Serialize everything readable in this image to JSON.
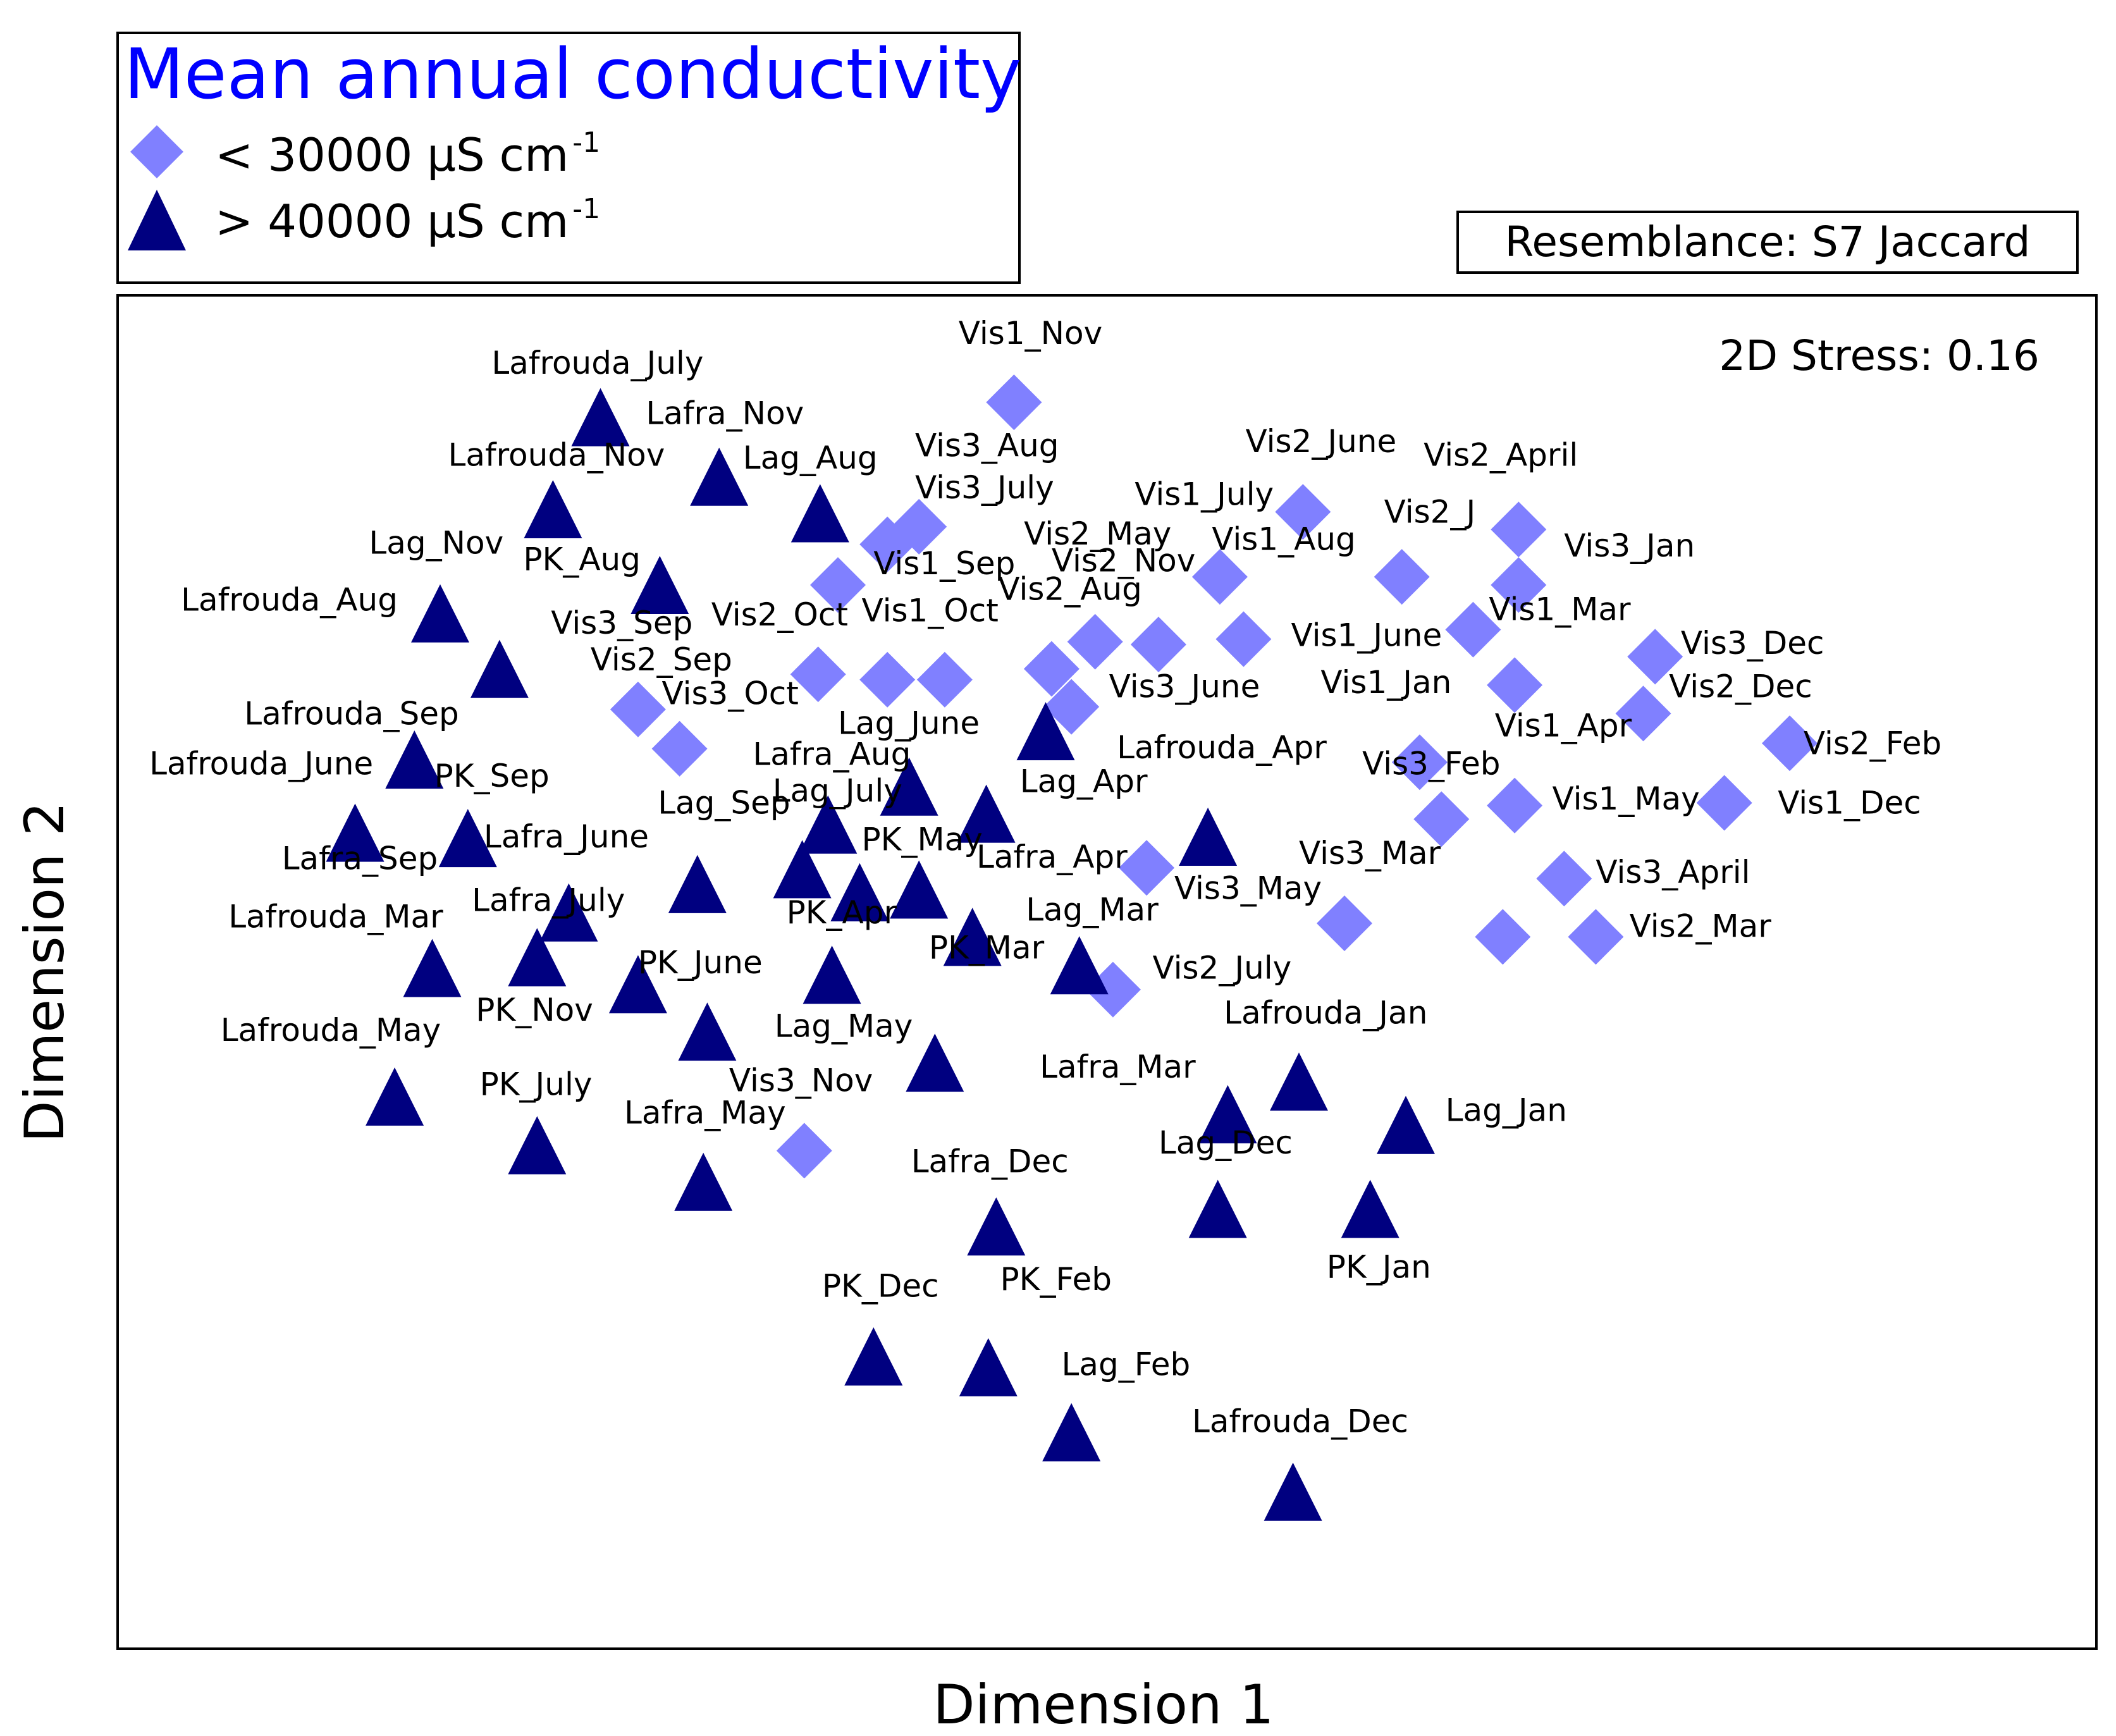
{
  "chart_data": {
    "type": "scatter",
    "title": "",
    "xlabel": "Dimension 1",
    "ylabel": "Dimension 2",
    "xlim": [
      0,
      100
    ],
    "ylim": [
      0,
      100
    ],
    "axis_ticks": false,
    "grid": false,
    "legend": {
      "title": "Mean annual conductivity",
      "title_color": "#0000ff",
      "placement": "top-left, above plot",
      "entries": [
        {
          "marker": "diamond",
          "color": "#8080ff",
          "text": "< 30000 µS cm",
          "sup": "-1"
        },
        {
          "marker": "triangle",
          "color": "#000080",
          "text": "> 40000 µS cm",
          "sup": "-1"
        }
      ]
    },
    "resemblance": "Resemblance: S7 Jaccard",
    "stress": "2D Stress: 0.16",
    "series": [
      {
        "marker": "diamond",
        "color": "#8080ff",
        "points": [
          {
            "x": 45.3,
            "y": 92.1
          },
          {
            "x": 38.9,
            "y": 81.6
          },
          {
            "x": 40.5,
            "y": 82.9
          },
          {
            "x": 36.4,
            "y": 78.6
          },
          {
            "x": 59.9,
            "y": 84.0
          },
          {
            "x": 70.8,
            "y": 82.7
          },
          {
            "x": 55.7,
            "y": 79.2
          },
          {
            "x": 52.6,
            "y": 74.2
          },
          {
            "x": 49.4,
            "y": 74.4
          },
          {
            "x": 47.2,
            "y": 72.4
          },
          {
            "x": 48.2,
            "y": 69.6
          },
          {
            "x": 56.9,
            "y": 74.6
          },
          {
            "x": 64.9,
            "y": 79.2
          },
          {
            "x": 70.8,
            "y": 78.6
          },
          {
            "x": 68.5,
            "y": 75.3
          },
          {
            "x": 70.6,
            "y": 71.2
          },
          {
            "x": 35.4,
            "y": 72.0
          },
          {
            "x": 38.9,
            "y": 71.6
          },
          {
            "x": 41.8,
            "y": 71.6
          },
          {
            "x": 26.3,
            "y": 69.4
          },
          {
            "x": 28.4,
            "y": 66.5
          },
          {
            "x": 77.7,
            "y": 73.3
          },
          {
            "x": 77.1,
            "y": 69.1
          },
          {
            "x": 84.5,
            "y": 66.9
          },
          {
            "x": 65.8,
            "y": 65.5
          },
          {
            "x": 66.9,
            "y": 61.3
          },
          {
            "x": 70.6,
            "y": 62.3
          },
          {
            "x": 81.2,
            "y": 62.5
          },
          {
            "x": 52.0,
            "y": 57.7
          },
          {
            "x": 73.1,
            "y": 56.9
          },
          {
            "x": 62.0,
            "y": 53.6
          },
          {
            "x": 70.0,
            "y": 52.6
          },
          {
            "x": 74.7,
            "y": 52.6
          },
          {
            "x": 50.3,
            "y": 48.7
          },
          {
            "x": 34.7,
            "y": 36.8
          }
        ]
      },
      {
        "marker": "triangle",
        "color": "#000080",
        "points": [
          {
            "x": 24.4,
            "y": 91.0
          },
          {
            "x": 30.4,
            "y": 86.6
          },
          {
            "x": 22.0,
            "y": 84.2
          },
          {
            "x": 35.5,
            "y": 83.9
          },
          {
            "x": 16.3,
            "y": 76.5
          },
          {
            "x": 27.4,
            "y": 78.6
          },
          {
            "x": 19.3,
            "y": 72.4
          },
          {
            "x": 15.0,
            "y": 65.7
          },
          {
            "x": 46.9,
            "y": 67.8
          },
          {
            "x": 40.0,
            "y": 63.7
          },
          {
            "x": 43.9,
            "y": 61.7
          },
          {
            "x": 12.0,
            "y": 60.3
          },
          {
            "x": 17.7,
            "y": 59.9
          },
          {
            "x": 35.9,
            "y": 60.9
          },
          {
            "x": 55.1,
            "y": 60.0
          },
          {
            "x": 29.3,
            "y": 56.5
          },
          {
            "x": 34.6,
            "y": 57.6
          },
          {
            "x": 37.5,
            "y": 55.9
          },
          {
            "x": 40.5,
            "y": 56.1
          },
          {
            "x": 22.8,
            "y": 54.4
          },
          {
            "x": 43.2,
            "y": 52.6
          },
          {
            "x": 21.2,
            "y": 51.1
          },
          {
            "x": 15.9,
            "y": 50.3
          },
          {
            "x": 36.1,
            "y": 49.8
          },
          {
            "x": 48.6,
            "y": 50.5
          },
          {
            "x": 26.3,
            "y": 49.1
          },
          {
            "x": 29.8,
            "y": 45.6
          },
          {
            "x": 41.3,
            "y": 43.3
          },
          {
            "x": 14.0,
            "y": 40.8
          },
          {
            "x": 59.7,
            "y": 41.9
          },
          {
            "x": 56.1,
            "y": 39.5
          },
          {
            "x": 65.1,
            "y": 38.7
          },
          {
            "x": 21.2,
            "y": 37.2
          },
          {
            "x": 29.6,
            "y": 34.5
          },
          {
            "x": 44.4,
            "y": 31.2
          },
          {
            "x": 55.6,
            "y": 32.5
          },
          {
            "x": 63.3,
            "y": 32.5
          },
          {
            "x": 38.2,
            "y": 21.6
          },
          {
            "x": 44.0,
            "y": 20.8
          },
          {
            "x": 48.2,
            "y": 16.0
          },
          {
            "x": 59.4,
            "y": 11.6
          }
        ]
      }
    ],
    "labels": [
      {
        "text": "Vis1_Nov",
        "x": 42.5,
        "y": 96.4
      },
      {
        "text": "Vis3_Aug",
        "x": 40.3,
        "y": 88.1
      },
      {
        "text": "Vis3_July",
        "x": 40.3,
        "y": 85.0
      },
      {
        "text": "Vis2_June",
        "x": 57.0,
        "y": 88.4
      },
      {
        "text": "Vis2_April",
        "x": 66.0,
        "y": 87.4
      },
      {
        "text": "Vis1_July",
        "x": 51.4,
        "y": 84.5
      },
      {
        "text": "Vis2_J",
        "x": 64.0,
        "y": 83.2
      },
      {
        "text": "Vis2_May",
        "x": 45.8,
        "y": 81.6
      },
      {
        "text": "Vis1_Aug",
        "x": 55.3,
        "y": 81.2
      },
      {
        "text": "Vis3_Jan",
        "x": 73.1,
        "y": 80.7
      },
      {
        "text": "Vis1_Sep",
        "x": 38.2,
        "y": 79.4
      },
      {
        "text": "Vis2_Nov",
        "x": 47.2,
        "y": 79.6
      },
      {
        "text": "Vis2_Aug",
        "x": 44.5,
        "y": 77.5
      },
      {
        "text": "Vis3_Sep",
        "x": 21.9,
        "y": 75.0
      },
      {
        "text": "Vis2_Oct",
        "x": 30.0,
        "y": 75.6
      },
      {
        "text": "Vis1_Oct",
        "x": 37.6,
        "y": 75.9
      },
      {
        "text": "Vis1_Mar",
        "x": 69.3,
        "y": 76.0
      },
      {
        "text": "Vis1_June",
        "x": 59.3,
        "y": 74.1
      },
      {
        "text": "Vis3_Dec",
        "x": 79.0,
        "y": 73.5
      },
      {
        "text": "Vis2_Sep",
        "x": 23.9,
        "y": 72.3
      },
      {
        "text": "Vis3_June",
        "x": 50.1,
        "y": 70.3
      },
      {
        "text": "Vis1_Jan",
        "x": 60.8,
        "y": 70.6
      },
      {
        "text": "Vis2_Dec",
        "x": 78.4,
        "y": 70.3
      },
      {
        "text": "Vis3_Oct",
        "x": 27.5,
        "y": 69.8
      },
      {
        "text": "Lag_June",
        "x": 36.4,
        "y": 67.6
      },
      {
        "text": "Vis1_Apr",
        "x": 69.6,
        "y": 67.4
      },
      {
        "text": "Lafrouda_Sep",
        "x": 6.4,
        "y": 68.3
      },
      {
        "text": "Lafrouda_Apr",
        "x": 50.5,
        "y": 65.8
      },
      {
        "text": "Vis2_Feb",
        "x": 85.2,
        "y": 66.1
      },
      {
        "text": "Vis3_Feb",
        "x": 62.9,
        "y": 64.6
      },
      {
        "text": "Lafra_Aug",
        "x": 32.1,
        "y": 65.3
      },
      {
        "text": "Lafrouda_June",
        "x": 1.6,
        "y": 64.6
      },
      {
        "text": "PK_Sep",
        "x": 16.0,
        "y": 63.7
      },
      {
        "text": "Lag_July",
        "x": 33.1,
        "y": 62.6
      },
      {
        "text": "Lag_Apr",
        "x": 45.6,
        "y": 63.3
      },
      {
        "text": "Vis1_May",
        "x": 72.5,
        "y": 62.0
      },
      {
        "text": "Vis1_Dec",
        "x": 83.9,
        "y": 61.7
      },
      {
        "text": "Lag_Sep",
        "x": 27.3,
        "y": 61.7
      },
      {
        "text": "Lafra_June",
        "x": 18.5,
        "y": 59.2
      },
      {
        "text": "PK_May",
        "x": 37.6,
        "y": 59.0
      },
      {
        "text": "Lafra_Apr",
        "x": 43.4,
        "y": 57.7
      },
      {
        "text": "Vis3_Mar",
        "x": 59.7,
        "y": 58.0
      },
      {
        "text": "Vis3_April",
        "x": 74.7,
        "y": 56.6
      },
      {
        "text": "Lafra_Sep",
        "x": 8.3,
        "y": 57.6
      },
      {
        "text": "Vis3_May",
        "x": 53.4,
        "y": 55.4
      },
      {
        "text": "Lafra_July",
        "x": 17.9,
        "y": 54.5
      },
      {
        "text": "Lafrouda_Mar",
        "x": 5.6,
        "y": 53.3
      },
      {
        "text": "PK_Apr",
        "x": 33.8,
        "y": 53.6
      },
      {
        "text": "Lag_Mar",
        "x": 45.9,
        "y": 53.8
      },
      {
        "text": "Vis2_Mar",
        "x": 76.4,
        "y": 52.6
      },
      {
        "text": "PK_Mar",
        "x": 41.0,
        "y": 51.0
      },
      {
        "text": "PK_June",
        "x": 26.3,
        "y": 49.9
      },
      {
        "text": "Vis2_July",
        "x": 52.3,
        "y": 49.5
      },
      {
        "text": "PK_Nov",
        "x": 18.1,
        "y": 46.4
      },
      {
        "text": "Lafrouda_Jan",
        "x": 55.9,
        "y": 46.2
      },
      {
        "text": "Lag_May",
        "x": 33.2,
        "y": 45.2
      },
      {
        "text": "Lafrouda_May",
        "x": 5.2,
        "y": 44.9
      },
      {
        "text": "Lafra_Mar",
        "x": 46.6,
        "y": 42.2
      },
      {
        "text": "PK_July",
        "x": 18.3,
        "y": 40.9
      },
      {
        "text": "Vis3_Nov",
        "x": 30.9,
        "y": 41.2
      },
      {
        "text": "Lafra_May",
        "x": 25.6,
        "y": 38.8
      },
      {
        "text": "Lag_Jan",
        "x": 67.1,
        "y": 39.0
      },
      {
        "text": "Lag_Dec",
        "x": 52.6,
        "y": 36.6
      },
      {
        "text": "Lafra_Dec",
        "x": 40.1,
        "y": 35.2
      },
      {
        "text": "PK_Jan",
        "x": 61.1,
        "y": 27.4
      },
      {
        "text": "PK_Dec",
        "x": 35.6,
        "y": 26.0
      },
      {
        "text": "PK_Feb",
        "x": 44.6,
        "y": 26.5
      },
      {
        "text": "Lag_Feb",
        "x": 47.7,
        "y": 20.2
      },
      {
        "text": "Lafrouda_Dec",
        "x": 54.3,
        "y": 16.0
      },
      {
        "text": "Lafrouda_July",
        "x": 18.9,
        "y": 94.2
      },
      {
        "text": "Lafra_Nov",
        "x": 26.7,
        "y": 90.5
      },
      {
        "text": "Lafrouda_Nov",
        "x": 16.7,
        "y": 87.4
      },
      {
        "text": "Lag_Aug",
        "x": 31.6,
        "y": 87.2
      },
      {
        "text": "Lag_Nov",
        "x": 12.7,
        "y": 80.9
      },
      {
        "text": "PK_Aug",
        "x": 20.5,
        "y": 79.7
      },
      {
        "text": "Lafrouda_Aug",
        "x": 3.2,
        "y": 76.7
      }
    ]
  }
}
